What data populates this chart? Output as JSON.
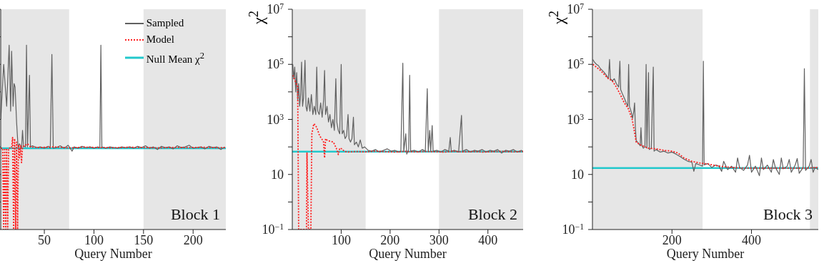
{
  "chart_data": [
    {
      "type": "line",
      "xlabel": "Query Number",
      "annotations": [
        "Block 1"
      ],
      "xlim": [
        6,
        233
      ],
      "xticks": [
        50,
        100,
        150,
        200
      ],
      "ylim": [
        0.1,
        10000000
      ],
      "yticks": [
        0.1,
        1,
        10,
        100,
        1000,
        10000,
        100000,
        1000000,
        10000000
      ],
      "log": true,
      "tick_labels": "x",
      "legend": "top right",
      "bands": [
        {
          "axis": "x",
          "from": 6,
          "to": 75,
          "color": "#e6e6e6"
        },
        {
          "axis": "x",
          "from": 150,
          "to": 233,
          "color": "#e6e6e6"
        }
      ],
      "ref_lines": [
        {
          "axis": "y",
          "value": 90,
          "label": "Null Mean χ$^{2}$",
          "color": "#22c8cc"
        }
      ],
      "series": [
        {
          "name": "Sampled",
          "color": "#606060",
          "x": [
            6,
            9,
            12,
            14.5,
            16,
            17,
            18.5,
            19.5,
            20.5,
            22,
            23.5,
            25,
            27,
            28,
            29,
            31,
            32,
            33,
            35,
            36,
            38,
            42,
            46,
            50,
            54,
            56,
            57.6,
            59,
            62,
            66,
            70,
            74,
            78,
            80,
            84,
            88,
            92,
            96,
            100,
            104,
            106,
            107,
            108,
            112,
            116,
            120,
            124,
            128,
            132,
            136,
            140,
            144,
            148,
            152,
            156,
            160,
            164,
            168,
            172,
            176,
            180,
            184,
            188,
            192,
            196,
            200,
            204,
            208,
            212,
            216,
            220,
            224,
            228,
            232
          ],
          "values": [
            1000,
            100000,
            3000,
            500000,
            2000,
            300000,
            3000,
            20000,
            15000,
            800,
            100,
            130,
            90,
            400,
            110,
            100,
            500000,
            100,
            40000,
            100,
            110,
            95,
            100,
            90,
            105,
            90,
            230000,
            90,
            95,
            110,
            90,
            115,
            70,
            100,
            90,
            105,
            95,
            100,
            90,
            100,
            95,
            500000,
            100,
            90,
            100,
            95,
            90,
            100,
            95,
            100,
            90,
            105,
            95,
            110,
            90,
            100,
            80,
            105,
            95,
            100,
            85,
            110,
            95,
            100,
            115,
            90,
            95,
            100,
            85,
            105,
            95,
            100,
            80,
            100
          ]
        },
        {
          "name": "Model",
          "color": "#ff2020",
          "line_style": "dotted",
          "x": [
            6,
            8,
            9,
            10,
            11,
            12,
            13,
            14,
            17,
            18,
            19,
            20,
            21,
            22,
            23,
            24,
            25,
            26,
            27,
            28,
            30,
            33,
            36,
            45,
            60,
            75,
            90,
            105,
            120,
            135,
            150,
            165,
            180,
            195,
            210,
            225,
            233
          ],
          "values": [
            90,
            90,
            0.1,
            90,
            0.1,
            90,
            0.1,
            90,
            95,
            220,
            0.1,
            200,
            0.1,
            150,
            0.1,
            120,
            40,
            110,
            27,
            100,
            110,
            130,
            100,
            95,
            100,
            92,
            98,
            95,
            93,
            97,
            95,
            92,
            96,
            94,
            97,
            93,
            95
          ]
        }
      ]
    },
    {
      "type": "line",
      "xlabel": "Query Number",
      "ylabel": "χ$^{2}$",
      "annotations": [
        "Block 2"
      ],
      "xlim": [
        0,
        472
      ],
      "xticks": [
        100,
        200,
        300,
        400
      ],
      "ylim": [
        0.1,
        10000000
      ],
      "yticks": [
        {
          "value": 0.1,
          "label": "10$^{−1}$"
        },
        {
          "value": 1,
          "label": null
        },
        10,
        {
          "value": 100,
          "label": null
        },
        {
          "value": 1000,
          "label": "10$^{3}$"
        },
        {
          "value": 10000,
          "label": null
        },
        {
          "value": 100000,
          "label": "10$^{5}$"
        },
        {
          "value": 1000000,
          "label": null
        },
        {
          "value": 10000000,
          "label": "10$^{7}$"
        }
      ],
      "log": true,
      "bands": [
        {
          "axis": "x",
          "from": 0,
          "to": 150,
          "color": "#e6e6e6"
        },
        {
          "axis": "x",
          "from": 300,
          "to": 472,
          "color": "#e6e6e6"
        }
      ],
      "ref_lines": [
        {
          "axis": "y",
          "value": 67,
          "color": "#22c8cc"
        }
      ],
      "series": [
        {
          "color": "#606060",
          "x": [
            1,
            3,
            5,
            7,
            9,
            11,
            13,
            15,
            17,
            19,
            21,
            23,
            26,
            28,
            30,
            33,
            36,
            39,
            42,
            45,
            48,
            50,
            52,
            55,
            58,
            61,
            64,
            66,
            68,
            71,
            74,
            77,
            80,
            83,
            86,
            89,
            91,
            94,
            97,
            100,
            102,
            105,
            108,
            111,
            114,
            116,
            119,
            122,
            125,
            127,
            131,
            135,
            139,
            143,
            148,
            155,
            162,
            170,
            178,
            186,
            194,
            202,
            210,
            218,
            222,
            226,
            228,
            232,
            234,
            238,
            240,
            242,
            250,
            258,
            266,
            272,
            276,
            278,
            281,
            283,
            286,
            288,
            296,
            304,
            312,
            320,
            323,
            325,
            332,
            340,
            346,
            348,
            356,
            364,
            372,
            380,
            388,
            396,
            404,
            412,
            420,
            428,
            436,
            444,
            452,
            460,
            468,
            471
          ],
          "values": [
            100000,
            30000,
            80000,
            10000,
            50000,
            5000,
            20000,
            3000,
            8000,
            120000,
            3000,
            6000,
            140000,
            3000,
            2000,
            6000,
            2000,
            8000,
            1500,
            3000,
            1500,
            80000,
            2000,
            1500,
            4000,
            1200,
            5000,
            60000,
            1500,
            3000,
            800,
            1500,
            500,
            1000,
            400,
            30000,
            800,
            400,
            300,
            100000,
            300,
            400,
            200,
            250,
            1500,
            200,
            150,
            200,
            1200,
            120,
            150,
            100,
            180,
            90,
            100,
            75,
            70,
            80,
            65,
            75,
            85,
            70,
            75,
            65,
            70,
            110000,
            70,
            300,
            55,
            80,
            40000,
            70,
            75,
            65,
            80,
            70,
            13000,
            70,
            400,
            70,
            600,
            70,
            75,
            65,
            80,
            70,
            220,
            70,
            75,
            65,
            1400,
            70,
            80,
            65,
            75,
            70,
            80,
            65,
            75,
            70,
            80,
            60,
            75,
            70,
            80,
            65,
            75,
            70
          ]
        },
        {
          "color": "#ff2020",
          "line_style": "dotted",
          "x": [
            1,
            4,
            8,
            11,
            13,
            29,
            30,
            33,
            38,
            40,
            44,
            48,
            52,
            56,
            60,
            64,
            66,
            68,
            72,
            78,
            84,
            90,
            94,
            97,
            102,
            106,
            112,
            130,
            150,
            170,
            190,
            210,
            230,
            250,
            270,
            290,
            310,
            330,
            350,
            370,
            390,
            410,
            430,
            450,
            472
          ],
          "values": [
            40000,
            30000,
            20000,
            15000,
            0.1,
            0.1,
            60,
            0.1,
            0.1,
            300,
            700,
            600,
            400,
            250,
            200,
            150,
            40,
            200,
            170,
            160,
            150,
            90,
            53,
            90,
            85,
            70,
            65,
            68,
            66,
            70,
            67,
            65,
            69,
            66,
            68,
            67,
            65,
            69,
            66,
            68,
            65,
            67,
            69,
            66,
            68
          ]
        }
      ]
    },
    {
      "type": "line",
      "xlabel": "Query Number",
      "ylabel": "χ$^{2}$",
      "annotations": [
        "Block 3"
      ],
      "xlim": [
        0,
        568
      ],
      "xticks": [
        200,
        400
      ],
      "ylim": [
        0.1,
        10000000
      ],
      "yticks": [
        {
          "value": 0.1,
          "label": "10$^{−1}$"
        },
        {
          "value": 1,
          "label": null
        },
        10,
        {
          "value": 100,
          "label": null
        },
        {
          "value": 1000,
          "label": "10$^{3}$"
        },
        {
          "value": 10000,
          "label": null
        },
        {
          "value": 100000,
          "label": "10$^{5}$"
        },
        {
          "value": 1000000,
          "label": null
        },
        {
          "value": 10000000,
          "label": "10$^{7}$"
        }
      ],
      "log": true,
      "bands": [
        {
          "axis": "x",
          "from": 0,
          "to": 277,
          "color": "#e6e6e6"
        },
        {
          "axis": "x",
          "from": 547,
          "to": 568,
          "color": "#e6e6e6"
        }
      ],
      "ref_lines": [
        {
          "axis": "y",
          "value": 17,
          "color": "#22c8cc"
        }
      ],
      "series": [
        {
          "color": "#606060",
          "x": [
            1,
            5,
            10,
            15,
            20,
            25,
            30,
            35,
            40,
            43,
            45,
            50,
            55,
            60,
            66,
            69,
            71,
            76,
            80,
            85,
            89,
            91,
            93,
            97,
            101,
            104,
            106,
            108,
            110,
            115,
            120,
            122,
            124,
            128,
            132,
            135,
            137,
            141,
            143,
            148,
            153,
            155,
            160,
            170,
            180,
            190,
            200,
            210,
            220,
            230,
            240,
            250,
            255,
            260,
            270,
            277,
            279,
            281,
            290,
            300,
            310,
            318,
            325,
            330,
            340,
            350,
            360,
            365,
            370,
            380,
            390,
            395,
            400,
            410,
            420,
            425,
            430,
            440,
            450,
            455,
            460,
            470,
            475,
            480,
            490,
            495,
            500,
            510,
            515,
            520,
            530,
            533,
            536,
            545,
            550,
            555,
            560,
            568
          ],
          "values": [
            150000,
            120000,
            100000,
            90000,
            70000,
            60000,
            50000,
            40000,
            30000,
            150000,
            30000,
            25000,
            30000,
            20000,
            15000,
            130000,
            12000,
            8000,
            6000,
            4000,
            3000,
            100000,
            3000,
            2000,
            1100,
            2000,
            4000,
            500,
            170,
            140,
            110,
            500,
            115,
            90,
            100,
            100000,
            90,
            50000,
            80,
            90,
            80000,
            70,
            80,
            65,
            70,
            60,
            65,
            55,
            45,
            36,
            30,
            28,
            13,
            25,
            22,
            20,
            130000,
            22,
            25,
            18,
            22,
            20,
            13,
            30,
            15,
            20,
            12,
            40,
            18,
            14,
            22,
            50,
            12,
            20,
            9,
            40,
            15,
            22,
            12,
            35,
            18,
            10,
            40,
            16,
            20,
            35,
            12,
            22,
            38,
            11,
            18,
            70000,
            14,
            20,
            35,
            12,
            18,
            15
          ]
        },
        {
          "color": "#ff2020",
          "line_style": "dotted",
          "x": [
            1,
            20,
            40,
            50,
            60,
            70,
            80,
            90,
            100,
            105,
            110,
            120,
            140,
            160,
            180,
            200,
            215,
            230,
            250,
            270,
            290,
            310,
            330,
            350,
            380,
            420,
            460,
            500,
            540,
            568
          ],
          "values": [
            100000,
            60000,
            30000,
            25000,
            15000,
            8000,
            4000,
            2500,
            1000,
            400,
            150,
            120,
            90,
            85,
            75,
            70,
            60,
            40,
            30,
            26,
            24,
            21,
            19,
            18,
            17,
            17,
            17,
            17,
            17,
            18
          ]
        }
      ]
    }
  ]
}
